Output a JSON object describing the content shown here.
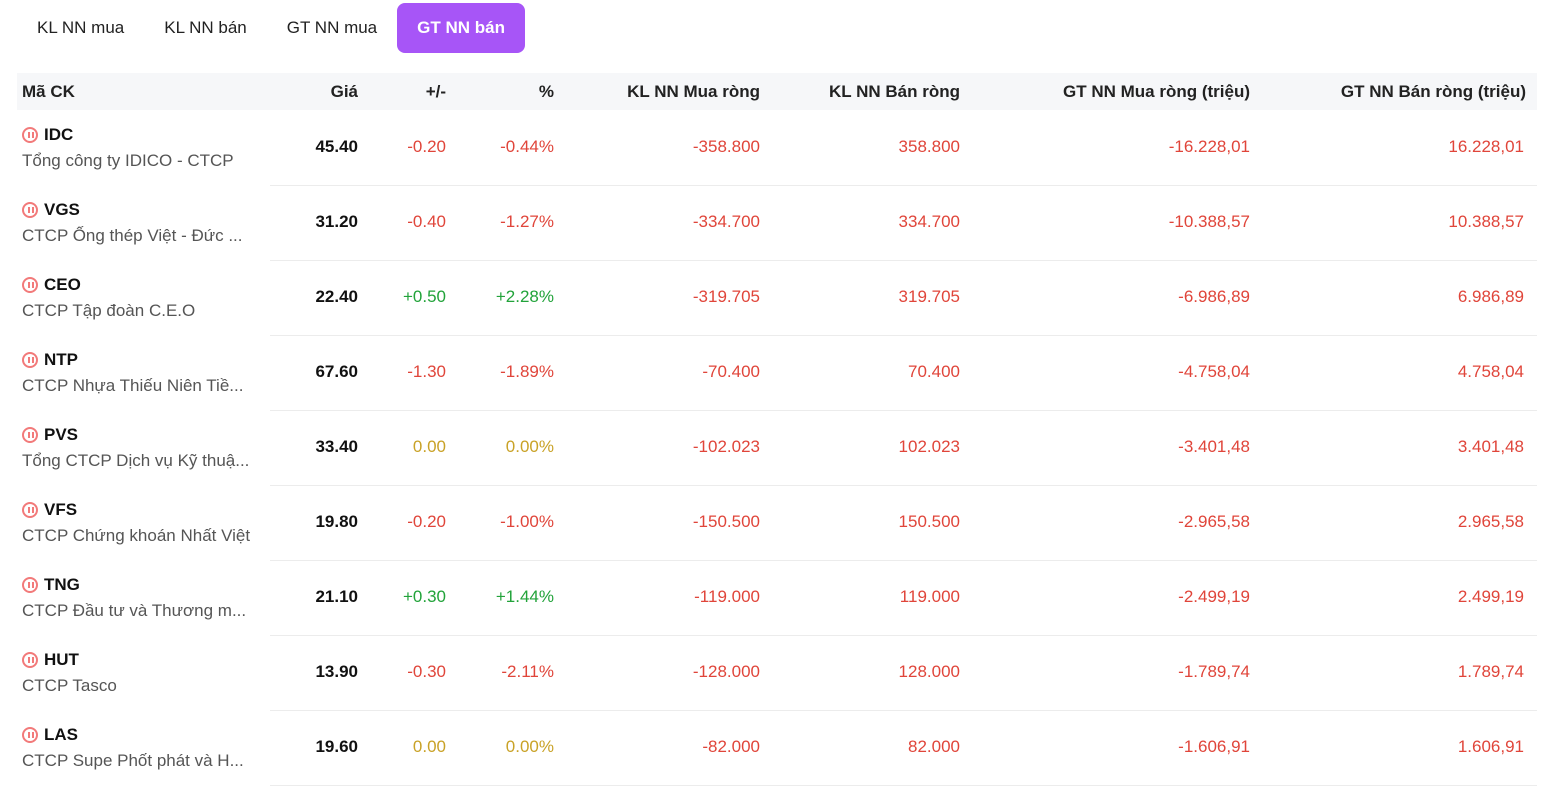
{
  "tabs": [
    {
      "label": "KL NN mua",
      "active": false
    },
    {
      "label": "KL NN bán",
      "active": false
    },
    {
      "label": "GT NN mua",
      "active": false
    },
    {
      "label": "GT NN bán",
      "active": true
    }
  ],
  "table": {
    "headers": [
      "Mã CK",
      "Giá",
      "+/-",
      "%",
      "KL NN Mua ròng",
      "KL NN Bán ròng",
      "GT NN Mua ròng (triệu)",
      "GT NN Bán ròng (triệu)"
    ],
    "rows": [
      {
        "symbol": "IDC",
        "name": "Tổng công ty IDICO - CTCP",
        "price": "45.40",
        "change": "-0.20",
        "pct": "-0.44%",
        "trend": "down",
        "kl_mua": "-358.800",
        "kl_ban": "358.800",
        "gt_mua": "-16.228,01",
        "gt_ban": "16.228,01"
      },
      {
        "symbol": "VGS",
        "name": "CTCP Ống thép Việt - Đức ...",
        "price": "31.20",
        "change": "-0.40",
        "pct": "-1.27%",
        "trend": "down",
        "kl_mua": "-334.700",
        "kl_ban": "334.700",
        "gt_mua": "-10.388,57",
        "gt_ban": "10.388,57"
      },
      {
        "symbol": "CEO",
        "name": "CTCP Tập đoàn C.E.O",
        "price": "22.40",
        "change": "+0.50",
        "pct": "+2.28%",
        "trend": "up",
        "kl_mua": "-319.705",
        "kl_ban": "319.705",
        "gt_mua": "-6.986,89",
        "gt_ban": "6.986,89"
      },
      {
        "symbol": "NTP",
        "name": "CTCP Nhựa Thiếu Niên Tiề...",
        "price": "67.60",
        "change": "-1.30",
        "pct": "-1.89%",
        "trend": "down",
        "kl_mua": "-70.400",
        "kl_ban": "70.400",
        "gt_mua": "-4.758,04",
        "gt_ban": "4.758,04"
      },
      {
        "symbol": "PVS",
        "name": "Tổng CTCP Dịch vụ Kỹ thuậ...",
        "price": "33.40",
        "change": "0.00",
        "pct": "0.00%",
        "trend": "flat",
        "kl_mua": "-102.023",
        "kl_ban": "102.023",
        "gt_mua": "-3.401,48",
        "gt_ban": "3.401,48"
      },
      {
        "symbol": "VFS",
        "name": "CTCP Chứng khoán Nhất Việt",
        "price": "19.80",
        "change": "-0.20",
        "pct": "-1.00%",
        "trend": "down",
        "kl_mua": "-150.500",
        "kl_ban": "150.500",
        "gt_mua": "-2.965,58",
        "gt_ban": "2.965,58"
      },
      {
        "symbol": "TNG",
        "name": "CTCP Đầu tư và Thương m...",
        "price": "21.10",
        "change": "+0.30",
        "pct": "+1.44%",
        "trend": "up",
        "kl_mua": "-119.000",
        "kl_ban": "119.000",
        "gt_mua": "-2.499,19",
        "gt_ban": "2.499,19"
      },
      {
        "symbol": "HUT",
        "name": "CTCP Tasco",
        "price": "13.90",
        "change": "-0.30",
        "pct": "-2.11%",
        "trend": "down",
        "kl_mua": "-128.000",
        "kl_ban": "128.000",
        "gt_mua": "-1.789,74",
        "gt_ban": "1.789,74"
      },
      {
        "symbol": "LAS",
        "name": "CTCP Supe Phốt phát và H...",
        "price": "19.60",
        "change": "0.00",
        "pct": "0.00%",
        "trend": "flat",
        "kl_mua": "-82.000",
        "kl_ban": "82.000",
        "gt_mua": "-1.606,91",
        "gt_ban": "1.606,91"
      }
    ]
  },
  "colors": {
    "accent": "#a755f7",
    "down": "#e0453a",
    "up": "#22a33a",
    "flat": "#c9a227"
  },
  "icons": {
    "row_status": "pause-circle-icon"
  }
}
